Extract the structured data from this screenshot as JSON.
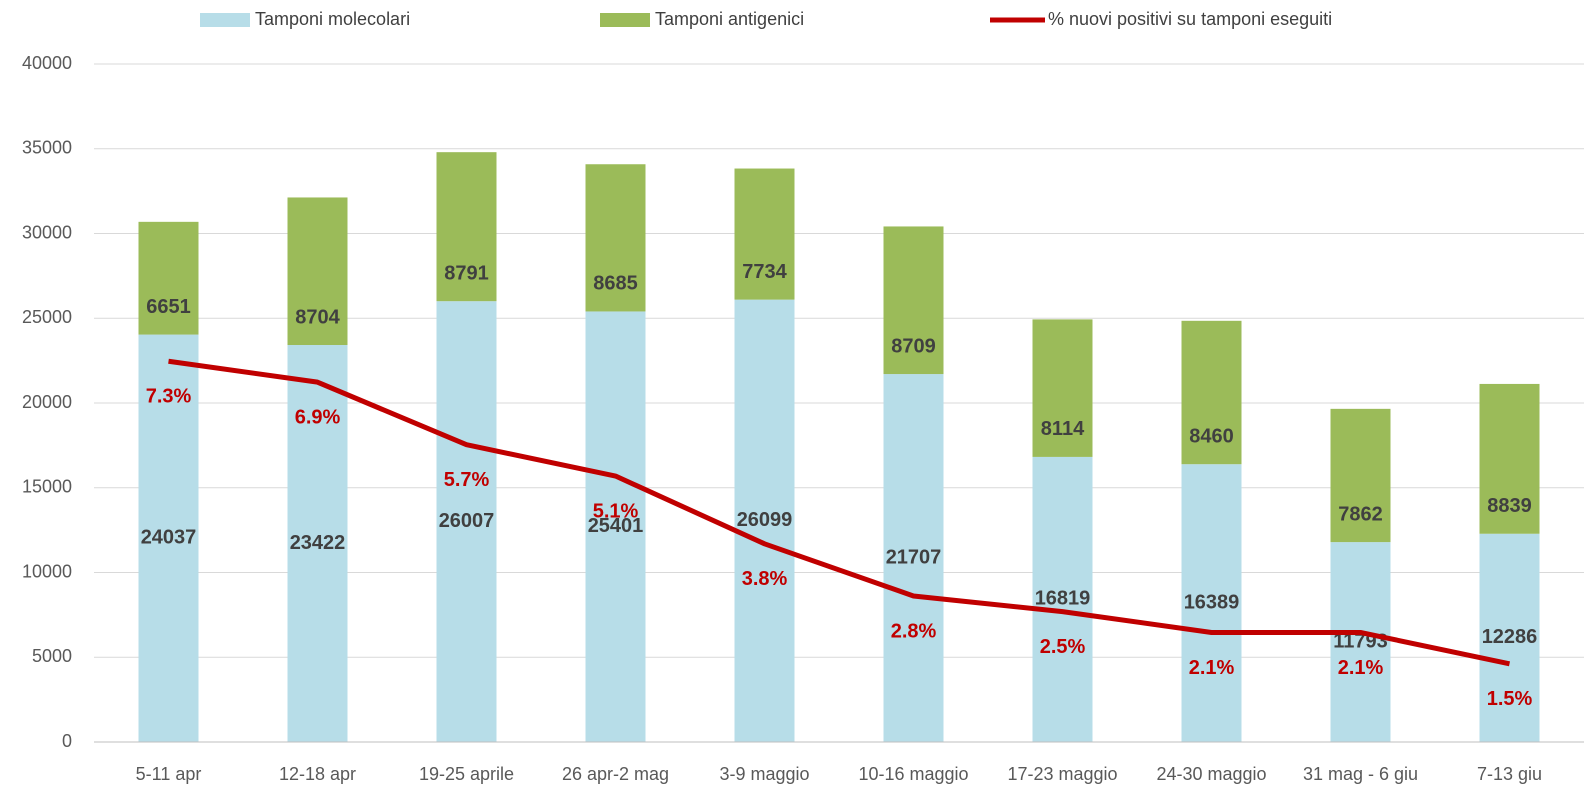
{
  "chart_data": {
    "type": "bar",
    "stacked": true,
    "categories": [
      "5-11 apr",
      "12-18 apr",
      "19-25 aprile",
      "26 apr-2 mag",
      "3-9 maggio",
      "10-16 maggio",
      "17-23 maggio",
      "24-30 maggio",
      "31 mag - 6 giu",
      "7-13 giu"
    ],
    "series": [
      {
        "name": "Tamponi molecolari",
        "color": "#b7dde8",
        "values": [
          24037,
          23422,
          26007,
          25401,
          26099,
          21707,
          16819,
          16389,
          11793,
          12286
        ]
      },
      {
        "name": "Tamponi antigenici",
        "color": "#9bbb59",
        "values": [
          6651,
          8704,
          8791,
          8685,
          7734,
          8709,
          8114,
          8460,
          7862,
          8839
        ]
      },
      {
        "name": "% nuovi positivi su tamponi eseguiti",
        "color": "#c00000",
        "type": "line",
        "axis": "y2",
        "values": [
          7.3,
          6.9,
          5.7,
          5.1,
          3.8,
          2.8,
          2.5,
          2.1,
          2.1,
          1.5
        ],
        "value_labels": [
          "7.3%",
          "6.9%",
          "5.7%",
          "5.1%",
          "3.8%",
          "2.8%",
          "2.5%",
          "2.1%",
          "2.1%",
          "1.5%"
        ]
      }
    ],
    "ylim": [
      0,
      40000
    ],
    "yticks": [
      0,
      5000,
      10000,
      15000,
      20000,
      25000,
      30000,
      35000,
      40000
    ],
    "y2lim": [
      0,
      13
    ],
    "grid": true,
    "legend": "top"
  }
}
